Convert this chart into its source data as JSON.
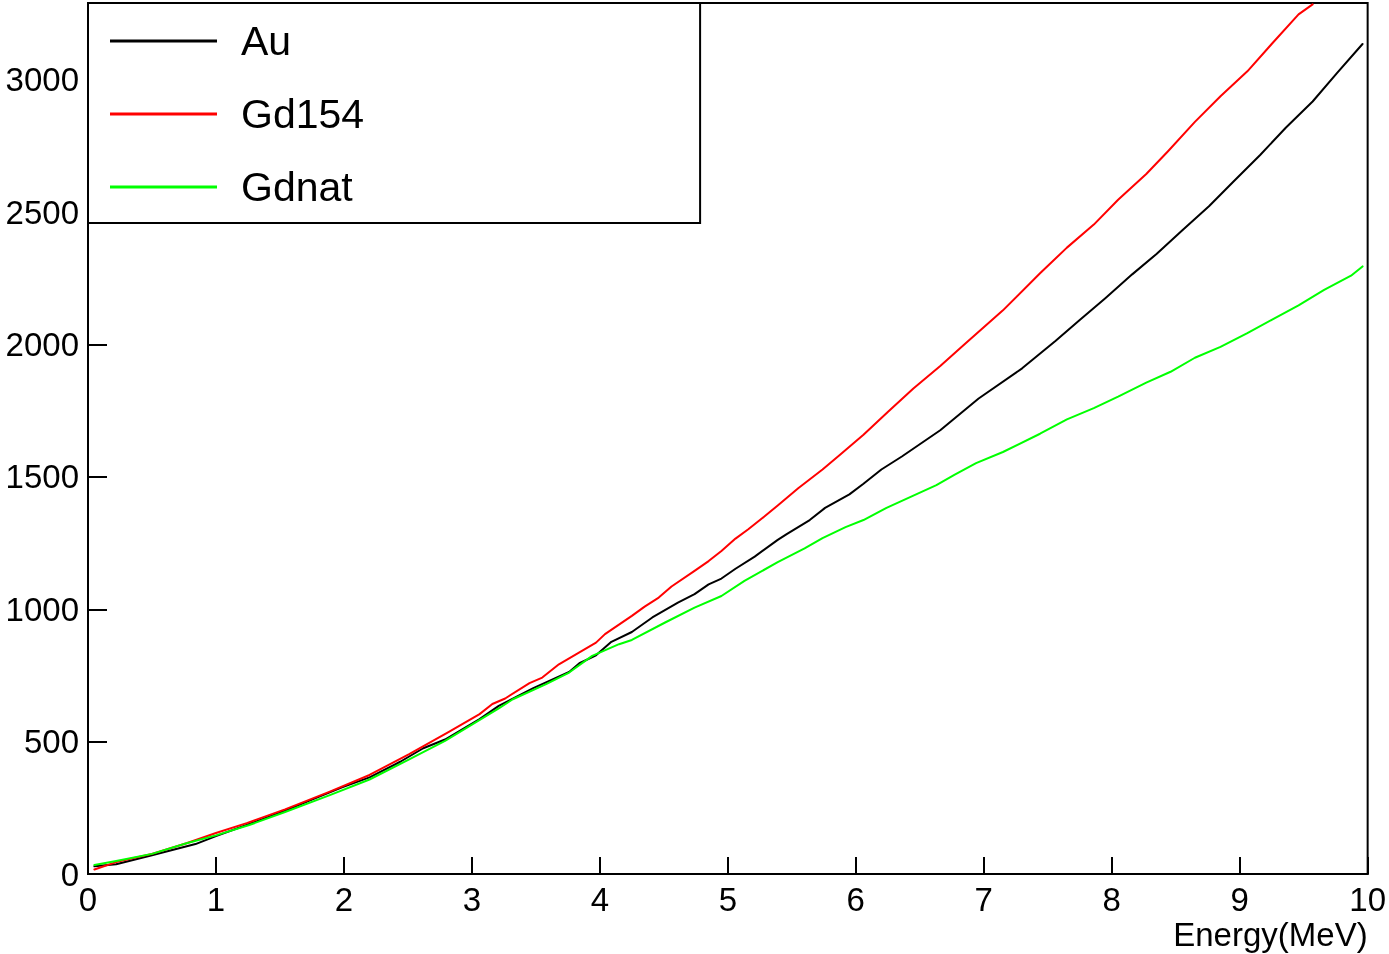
{
  "chart_data": {
    "type": "line",
    "xlabel": "Energy(MeV)",
    "xlim": [
      0,
      10
    ],
    "xticks": [
      0,
      1,
      2,
      3,
      4,
      5,
      6,
      7,
      8,
      9,
      10
    ],
    "ylim": [
      0,
      3290
    ],
    "yticks": [
      0,
      500,
      1000,
      1500,
      2000,
      2500,
      3000
    ],
    "grid": false,
    "legend": "top left",
    "marker": "none",
    "series": [
      {
        "name": "Au",
        "color": "#000000",
        "x": [
          0.05,
          0.22,
          0.5,
          0.84,
          1.0,
          1.26,
          1.54,
          1.75,
          1.99,
          2.2,
          2.44,
          2.62,
          2.79,
          3.06,
          3.21,
          3.48,
          3.76,
          3.84,
          3.97,
          4.09,
          4.25,
          4.41,
          4.61,
          4.74,
          4.85,
          4.95,
          5.06,
          5.21,
          5.39,
          5.46,
          5.64,
          5.76,
          5.95,
          6.06,
          6.2,
          6.36,
          6.66,
          6.96,
          7.3,
          7.56,
          7.75,
          7.95,
          8.16,
          8.35,
          8.55,
          8.76,
          8.95,
          9.16,
          9.36,
          9.57,
          9.76,
          9.96
        ],
        "values": [
          29,
          37,
          71,
          113,
          143,
          189,
          239,
          281,
          328,
          365,
          424,
          475,
          508,
          585,
          635,
          702,
          763,
          796,
          826,
          877,
          914,
          969,
          1025,
          1057,
          1094,
          1116,
          1153,
          1199,
          1262,
          1284,
          1337,
          1383,
          1434,
          1474,
          1528,
          1577,
          1676,
          1796,
          1910,
          2013,
          2093,
          2175,
          2265,
          2342,
          2431,
          2522,
          2615,
          2716,
          2819,
          2918,
          3025,
          3135
        ]
      },
      {
        "name": "Gd154",
        "color": "#ff0000",
        "x": [
          0.05,
          0.22,
          0.5,
          0.77,
          1.0,
          1.24,
          1.54,
          1.89,
          2.2,
          2.51,
          2.82,
          3.06,
          3.16,
          3.26,
          3.45,
          3.55,
          3.68,
          3.84,
          3.97,
          4.04,
          4.25,
          4.35,
          4.46,
          4.56,
          4.74,
          4.85,
          4.95,
          5.06,
          5.16,
          5.29,
          5.39,
          5.55,
          5.74,
          5.87,
          6.06,
          6.25,
          6.45,
          6.66,
          6.85,
          7.15,
          7.44,
          7.65,
          7.86,
          8.05,
          8.27,
          8.44,
          8.65,
          8.85,
          9.06,
          9.25,
          9.46,
          9.57
        ],
        "values": [
          17,
          45,
          76,
          116,
          155,
          192,
          244,
          311,
          374,
          453,
          537,
          604,
          642,
          663,
          721,
          742,
          792,
          837,
          874,
          906,
          975,
          1010,
          1044,
          1086,
          1145,
          1182,
          1220,
          1267,
          1302,
          1352,
          1392,
          1457,
          1528,
          1581,
          1659,
          1745,
          1834,
          1919,
          2001,
          2129,
          2269,
          2366,
          2453,
          2547,
          2644,
          2730,
          2841,
          2938,
          3032,
          3135,
          3247,
          3285
        ]
      },
      {
        "name": "Gdnat",
        "color": "#00ff00",
        "x": [
          0.05,
          0.22,
          0.5,
          0.77,
          1.0,
          1.26,
          1.54,
          1.89,
          2.2,
          2.51,
          2.79,
          3.0,
          3.21,
          3.32,
          3.58,
          3.76,
          3.94,
          4.15,
          4.25,
          4.51,
          4.74,
          4.95,
          5.13,
          5.39,
          5.6,
          5.74,
          5.92,
          6.06,
          6.24,
          6.45,
          6.63,
          6.77,
          6.94,
          7.15,
          7.44,
          7.65,
          7.86,
          8.05,
          8.27,
          8.46,
          8.65,
          8.85,
          9.06,
          9.25,
          9.46,
          9.66,
          9.87,
          9.96
        ],
        "values": [
          34,
          49,
          76,
          116,
          146,
          185,
          234,
          298,
          357,
          433,
          503,
          564,
          626,
          660,
          717,
          761,
          824,
          868,
          884,
          950,
          1006,
          1050,
          1107,
          1178,
          1230,
          1269,
          1310,
          1337,
          1383,
          1429,
          1469,
          1508,
          1552,
          1594,
          1663,
          1717,
          1760,
          1803,
          1856,
          1897,
          1950,
          1991,
          2043,
          2093,
          2148,
          2206,
          2260,
          2295
        ]
      }
    ]
  }
}
